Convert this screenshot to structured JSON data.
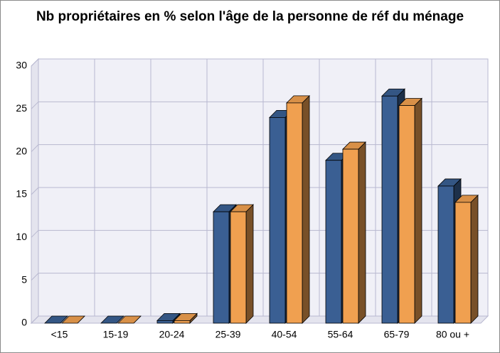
{
  "chart_data": {
    "type": "bar3d",
    "title": "Nb propriétaires en % selon l'âge de la personne de réf du ménage",
    "categories": [
      "<15",
      "15-19",
      "20-24",
      "25-39",
      "40-54",
      "55-64",
      "65-79",
      "80 ou +"
    ],
    "series": [
      {
        "color": "#3a5f93",
        "values": [
          0,
          0,
          0.3,
          13,
          24,
          19,
          26.5,
          16
        ]
      },
      {
        "color": "#f0a050",
        "values": [
          0,
          0,
          0.3,
          13,
          25.7,
          20.3,
          25.4,
          14.1
        ]
      }
    ],
    "ylim": [
      0,
      30
    ],
    "yticks": [
      0,
      5,
      10,
      15,
      20,
      25,
      30
    ],
    "grid": true
  }
}
